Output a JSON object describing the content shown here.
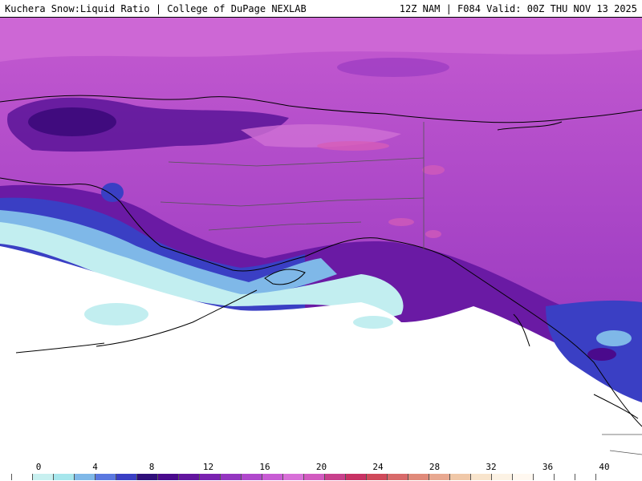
{
  "header": {
    "title": "Kuchera Snow:Liquid Ratio | College of DuPage NEXLAB",
    "run_info": "12Z NAM | F084 Valid: 00Z THU NOV 13 2025"
  },
  "map": {
    "region": "Alaska",
    "colors": {
      "ocean_no_snow": "#ffffff",
      "ratio_2": "#c8f0f0",
      "ratio_4": "#a6e6ec",
      "ratio_6": "#7fb8e8",
      "ratio_8": "#5a78e0",
      "ratio_10": "#3a3fc4",
      "ratio_12": "#4a0a8c",
      "ratio_14": "#62159e",
      "ratio_16": "#7a22b0",
      "ratio_18": "#9436c0",
      "ratio_20": "#b048cc",
      "ratio_22": "#c85cd4",
      "ratio_24": "#d870d8"
    }
  },
  "colorbar": {
    "labels": [
      "0",
      "4",
      "8",
      "12",
      "16",
      "20",
      "24",
      "28",
      "32",
      "36",
      "40"
    ],
    "swatch_colors": [
      "#ffffff",
      "#c8f0f0",
      "#a6e6ec",
      "#7fb8e8",
      "#5a78e0",
      "#3a3fc4",
      "#2f0f7a",
      "#4a0a8c",
      "#62159e",
      "#7a22b0",
      "#9436c0",
      "#b048cc",
      "#c85cd4",
      "#d870d8",
      "#d25ac0",
      "#c8408c",
      "#c83264",
      "#d04a5a",
      "#d86a6a",
      "#e08a7a",
      "#e8a890",
      "#f0c8a8",
      "#f8e4cc",
      "#fcf2e4",
      "#fff8f0",
      "#ffffff",
      "#ffffff",
      "#ffffff",
      "#ffffff"
    ]
  }
}
